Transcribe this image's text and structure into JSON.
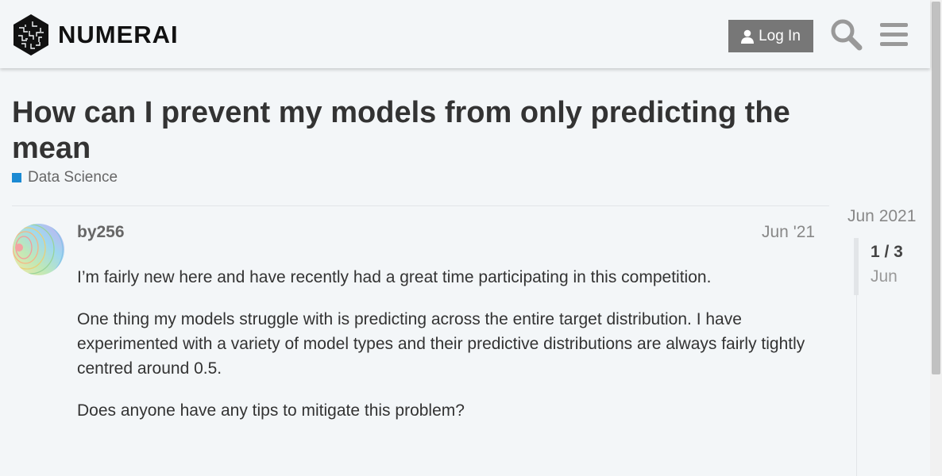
{
  "header": {
    "logo_text": "NUMERAI",
    "login_label": "Log In",
    "icons": [
      "numerai-logo-icon",
      "user-icon",
      "search-icon",
      "hamburger-menu-icon"
    ]
  },
  "topic": {
    "title": "How can I prevent my models from only predicting the mean",
    "category": "Data Science",
    "category_color": "#1b8ad3"
  },
  "post": {
    "username": "by256",
    "date": "Jun '21",
    "paragraphs": [
      "I’m fairly new here and have recently had a great time participating in this competition.",
      "One thing my models struggle with is predicting across the entire target distribution. I have experimented with a variety of model types and their predictive distributions are always fairly tightly centred around 0.5.",
      "Does anyone have any tips to mitigate this problem?"
    ]
  },
  "timeline": {
    "start_date": "Jun 2021",
    "position": "1 / 3",
    "current_month": "Jun"
  },
  "colors": {
    "background": "#f3f6f8",
    "button": "#777777",
    "accent": "#1b8ad3"
  }
}
